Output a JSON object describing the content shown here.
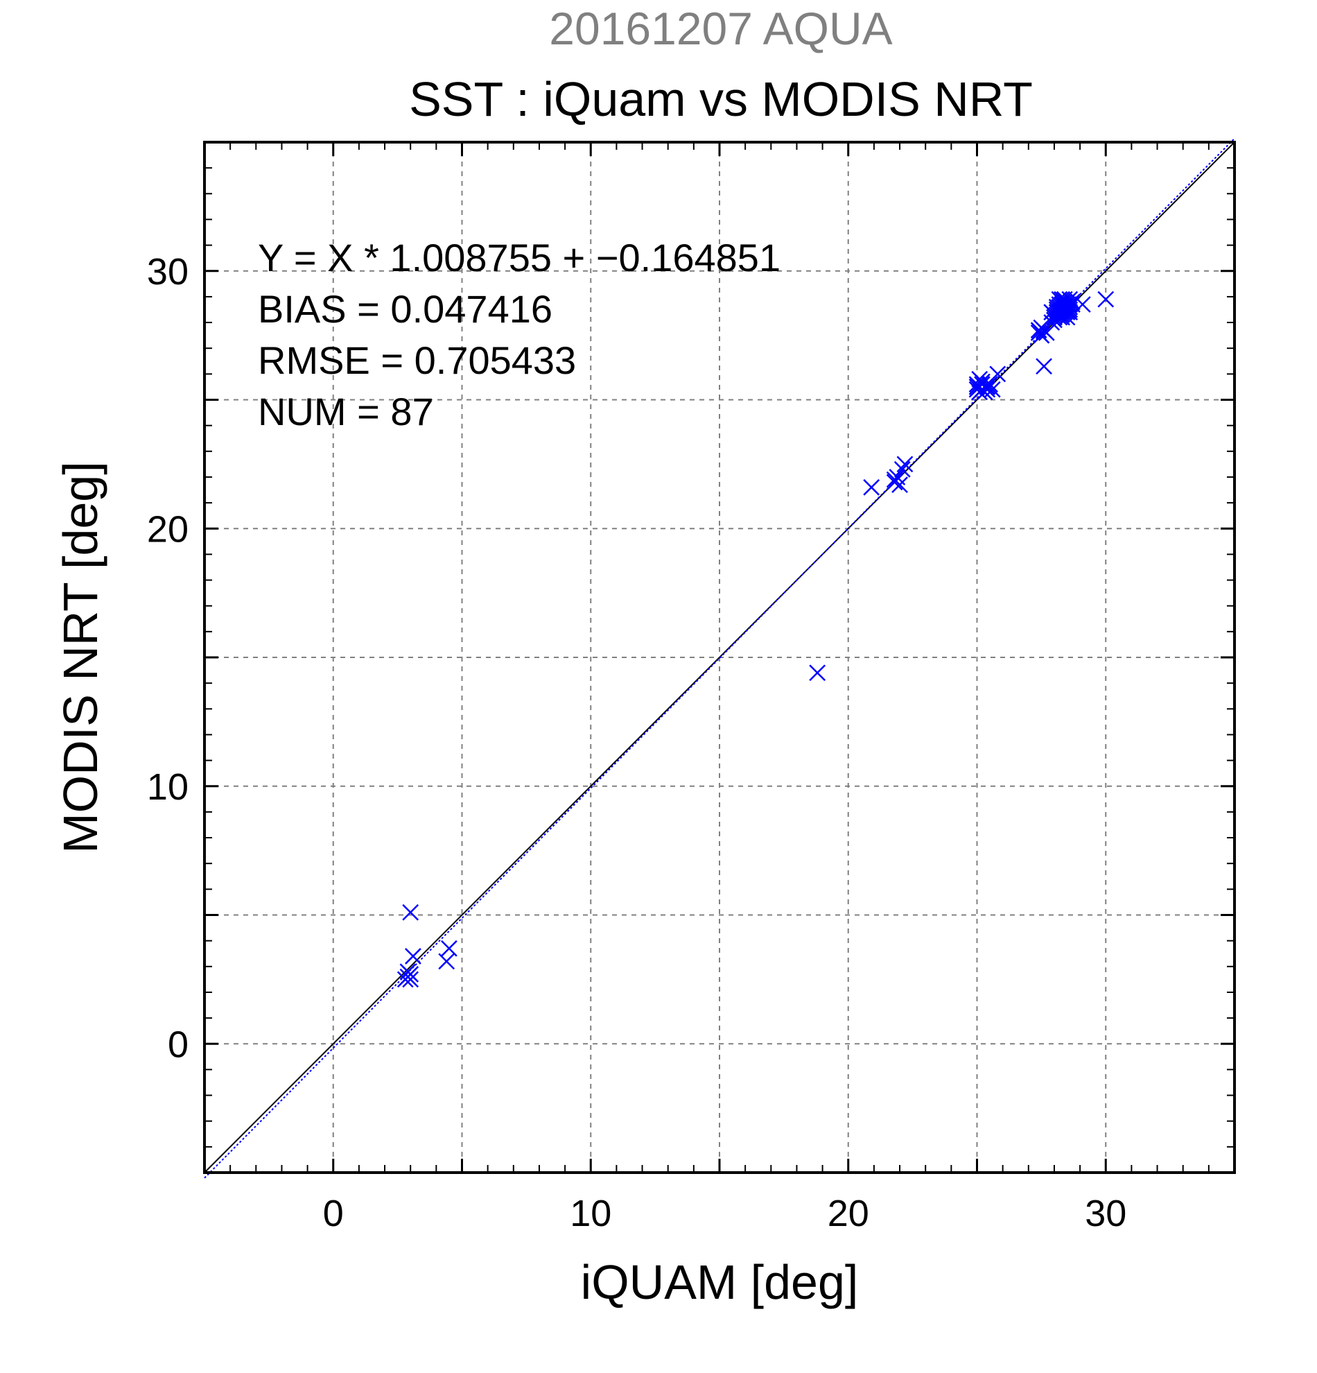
{
  "chart_data": {
    "type": "scatter",
    "supertitle": "20161207 AQUA",
    "title": "SST : iQuam vs MODIS NRT",
    "xlabel": "iQUAM [deg]",
    "ylabel": "MODIS NRT [deg]",
    "xlim": [
      -5,
      35
    ],
    "ylim": [
      -5,
      35
    ],
    "xticks": [
      0,
      10,
      20,
      30
    ],
    "yticks": [
      0,
      10,
      20,
      30
    ],
    "xtick_labels": [
      "0",
      "10",
      "20",
      "30"
    ],
    "ytick_labels": [
      "0",
      "10",
      "20",
      "30"
    ],
    "grid": true,
    "grid_step": 5,
    "minor_step": 1,
    "marker": "x",
    "annotations": [
      "Y = X * 1.008755 + −0.164851",
      "BIAS = 0.047416",
      "RMSE = 0.705433",
      "NUM = 87"
    ],
    "regression": {
      "slope": 1.008755,
      "intercept": -0.164851
    },
    "colors": {
      "points": "#0000ff",
      "fit_line": "#0000ff",
      "identity_line": "#000000",
      "supertitle": "#808080",
      "grid": "#808080"
    },
    "series": [
      {
        "x": [
          2.8,
          2.9,
          3.0,
          3.0,
          2.9,
          3.1,
          3.0,
          4.4,
          4.5,
          18.8,
          20.9,
          21.8,
          21.9,
          22.0,
          22.1,
          21.8,
          22.2,
          25.0,
          25.1,
          25.2,
          25.3,
          25.1,
          25.4,
          25.2,
          25.5,
          25.8,
          25.0,
          25.3,
          25.6,
          25.1,
          25.2,
          25.4,
          25.0,
          27.4,
          27.5,
          27.6,
          27.5,
          27.7,
          27.4,
          27.6,
          27.5,
          28.0,
          28.1,
          28.2,
          28.3,
          28.4,
          28.5,
          28.6,
          28.1,
          28.2,
          28.3,
          28.4,
          28.5,
          28.2,
          28.3,
          28.4,
          28.6,
          28.7,
          28.0,
          28.1,
          28.3,
          28.5,
          28.2,
          28.4,
          28.6,
          28.3,
          28.5,
          27.9,
          28.0,
          28.2,
          28.4,
          28.6,
          28.1,
          28.3,
          28.5,
          28.2,
          28.4,
          28.7,
          28.3,
          28.5,
          28.2,
          28.4,
          28.6,
          28.3,
          29.1,
          30.0,
          27.9
        ],
        "y": [
          2.5,
          2.6,
          2.5,
          2.7,
          2.8,
          3.4,
          5.1,
          3.2,
          3.7,
          14.4,
          21.6,
          21.9,
          22.0,
          21.7,
          22.3,
          21.8,
          22.5,
          25.4,
          25.5,
          25.6,
          25.3,
          25.8,
          25.5,
          25.4,
          25.6,
          26.0,
          25.6,
          25.5,
          25.4,
          25.3,
          25.7,
          25.4,
          25.5,
          27.6,
          27.5,
          27.7,
          27.8,
          27.6,
          27.7,
          26.3,
          27.5,
          28.2,
          28.4,
          28.5,
          28.7,
          28.6,
          28.8,
          28.9,
          28.3,
          28.6,
          28.5,
          28.8,
          28.7,
          28.9,
          28.4,
          28.5,
          28.6,
          28.8,
          28.3,
          28.5,
          28.7,
          28.4,
          28.2,
          28.9,
          28.7,
          28.3,
          28.5,
          28.0,
          28.1,
          28.3,
          28.6,
          28.4,
          28.6,
          28.8,
          28.2,
          28.4,
          28.6,
          28.7,
          28.9,
          28.5,
          28.7,
          28.4,
          28.5,
          28.2,
          28.7,
          28.9,
          28.4
        ]
      }
    ]
  }
}
